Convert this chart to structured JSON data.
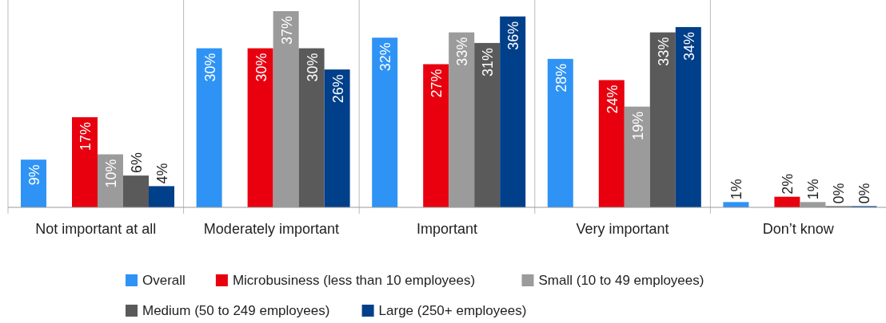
{
  "chart_data": {
    "type": "bar",
    "categories": [
      "Not important at all",
      "Moderately important",
      "Important",
      "Very important",
      "Don’t know"
    ],
    "series": [
      {
        "name": "Overall",
        "color": "#2e93f5",
        "values": [
          9,
          30,
          32,
          28,
          1
        ],
        "value_labels": [
          "9%",
          "30%",
          "32%",
          "28%",
          "1%"
        ]
      },
      {
        "name": "Microbusiness (less than 10 employees)",
        "color": "#e8000f",
        "values": [
          17,
          30,
          27,
          24,
          2
        ],
        "value_labels": [
          "17%",
          "30%",
          "27%",
          "24%",
          "2%"
        ]
      },
      {
        "name": "Small (10 to 49 employees)",
        "color": "#9b9b9b",
        "values": [
          10,
          37,
          33,
          19,
          1
        ],
        "value_labels": [
          "10%",
          "37%",
          "33%",
          "19%",
          "1%"
        ]
      },
      {
        "name": "Medium (50 to 249 employees)",
        "color": "#5a5a5a",
        "values": [
          6,
          30,
          31,
          33,
          0
        ],
        "value_labels": [
          "6%",
          "30%",
          "31%",
          "33%",
          "0%"
        ]
      },
      {
        "name": "Large (250+ employees)",
        "color": "#003f8a",
        "values": [
          4,
          26,
          36,
          34,
          0
        ],
        "value_labels": [
          "4%",
          "26%",
          "36%",
          "34%",
          "0%"
        ]
      }
    ],
    "legend": "bottom"
  }
}
